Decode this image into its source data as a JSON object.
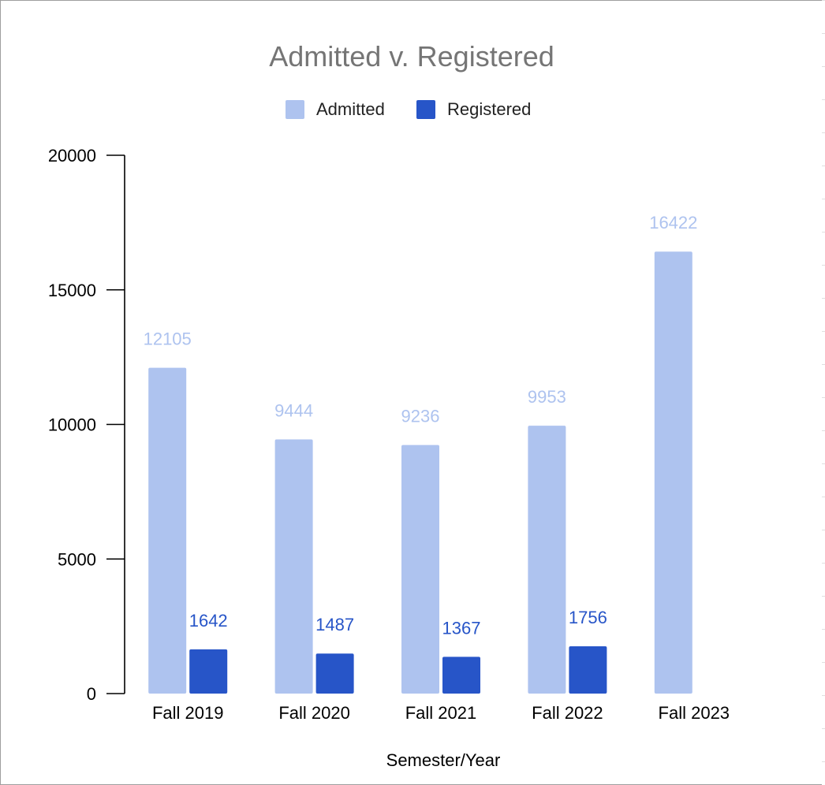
{
  "chart_data": {
    "type": "bar",
    "title": "Admitted v. Registered",
    "xlabel": "Semester/Year",
    "ylabel": "",
    "categories": [
      "Fall 2019",
      "Fall 2020",
      "Fall 2021",
      "Fall 2022",
      "Fall 2023"
    ],
    "series": [
      {
        "name": "Admitted",
        "values": [
          12105,
          9444,
          9236,
          9953,
          16422
        ],
        "color": "#aec3ef"
      },
      {
        "name": "Registered",
        "values": [
          1642,
          1487,
          1367,
          1756,
          null
        ],
        "color": "#2755c8"
      }
    ],
    "ylim": [
      0,
      20000
    ],
    "yticks": [
      "0",
      "5000",
      "10000",
      "15000",
      "20000"
    ],
    "legend_position": "top",
    "grid": false,
    "data_labels": true
  }
}
